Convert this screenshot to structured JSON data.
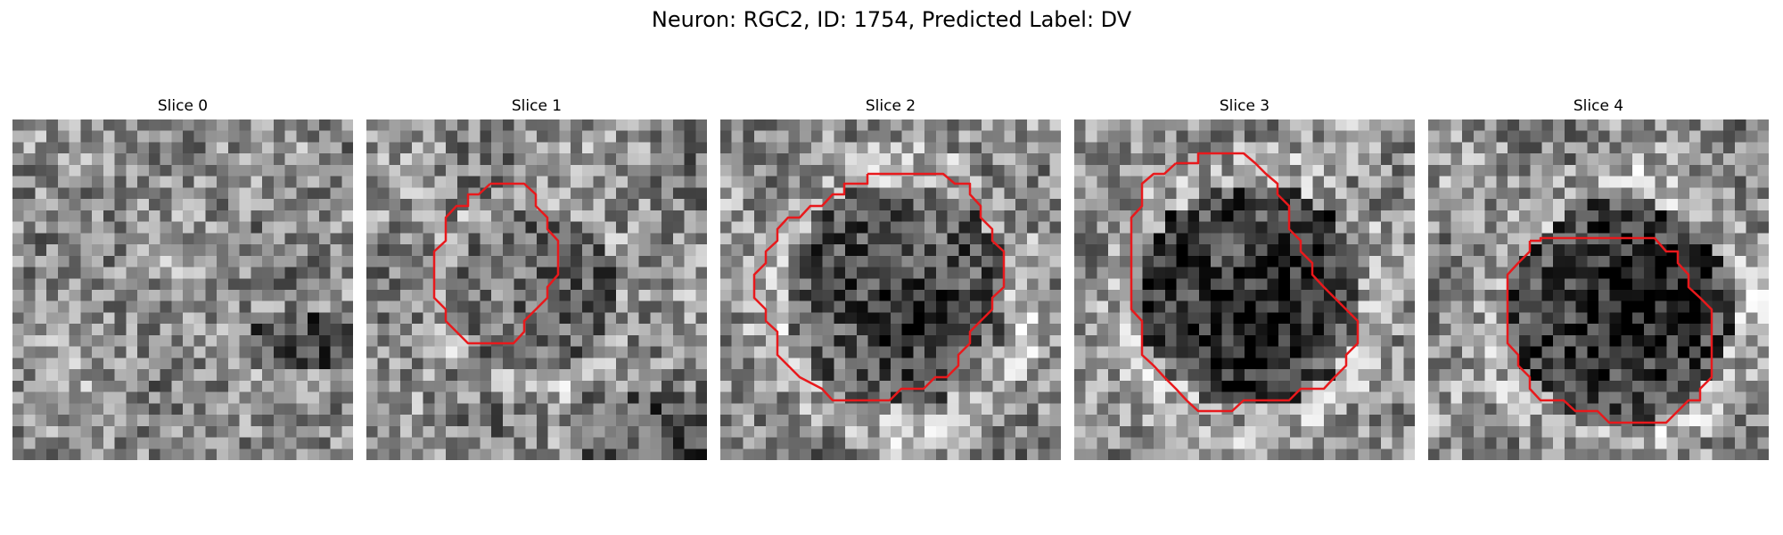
{
  "figure": {
    "title": "Neuron: RGC2, ID: 1754, Predicted Label: DV"
  },
  "panels": [
    {
      "title": "Slice 0",
      "has_contour": false,
      "seed": 11,
      "dark_region": "none"
    },
    {
      "title": "Slice 1",
      "has_contour": true,
      "seed": 23,
      "dark_region": "faint"
    },
    {
      "title": "Slice 2",
      "has_contour": true,
      "seed": 37,
      "dark_region": "medium"
    },
    {
      "title": "Slice 3",
      "has_contour": true,
      "seed": 51,
      "dark_region": "strong"
    },
    {
      "title": "Slice 4",
      "has_contour": true,
      "seed": 67,
      "dark_region": "strong"
    }
  ],
  "colors": {
    "contour": "#e8191c",
    "background": "#ffffff"
  },
  "image": {
    "colormap": "grayscale",
    "grid": 30
  }
}
